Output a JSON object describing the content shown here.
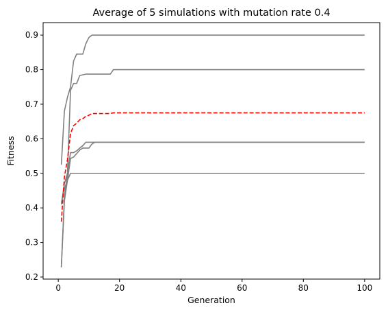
{
  "chart_data": {
    "type": "line",
    "title": "Average of 5 simulations with mutation rate 0.4",
    "xlabel": "Generation",
    "ylabel": "Fitness",
    "xlim": [
      -4.95,
      104.95
    ],
    "ylim": [
      0.194,
      0.936
    ],
    "xticks": [
      0,
      20,
      40,
      60,
      80,
      100
    ],
    "yticks": [
      0.2,
      0.3,
      0.4,
      0.5,
      0.6,
      0.7,
      0.8,
      0.9
    ],
    "grid": false,
    "legend": "none",
    "series_color": "#808080",
    "average_color": "#ff0000",
    "series": [
      {
        "x": [
          1,
          2,
          3,
          4,
          5,
          6,
          7,
          8,
          9,
          10,
          11,
          100
        ],
        "y": [
          0.525,
          0.68,
          0.72,
          0.75,
          0.825,
          0.845,
          0.845,
          0.845,
          0.875,
          0.893,
          0.9,
          0.9
        ]
      },
      {
        "x": [
          1,
          2,
          3,
          4,
          5,
          6,
          7,
          8,
          9,
          16,
          17,
          18,
          100
        ],
        "y": [
          0.41,
          0.47,
          0.5,
          0.74,
          0.76,
          0.76,
          0.783,
          0.785,
          0.787,
          0.787,
          0.787,
          0.8,
          0.8
        ]
      },
      {
        "x": [
          1,
          2,
          3,
          4,
          5,
          6,
          7,
          8,
          9,
          10,
          11,
          12,
          100
        ],
        "y": [
          0.228,
          0.43,
          0.5,
          0.56,
          0.56,
          0.565,
          0.573,
          0.58,
          0.59,
          0.59,
          0.59,
          0.59,
          0.59
        ]
      },
      {
        "x": [
          1,
          2,
          3,
          4,
          5,
          6,
          7,
          8,
          9,
          10,
          11,
          12,
          100
        ],
        "y": [
          0.23,
          0.42,
          0.48,
          0.543,
          0.547,
          0.557,
          0.567,
          0.573,
          0.573,
          0.573,
          0.585,
          0.59,
          0.59
        ]
      },
      {
        "x": [
          1,
          2,
          3,
          4,
          100
        ],
        "y": [
          0.415,
          0.455,
          0.48,
          0.5,
          0.5
        ]
      }
    ],
    "average": {
      "x": [
        1,
        2,
        3,
        4,
        5,
        6,
        7,
        8,
        9,
        10,
        11,
        17,
        18,
        100
      ],
      "y": [
        0.36,
        0.49,
        0.54,
        0.615,
        0.638,
        0.645,
        0.655,
        0.658,
        0.665,
        0.668,
        0.673,
        0.673,
        0.675,
        0.675
      ]
    }
  }
}
